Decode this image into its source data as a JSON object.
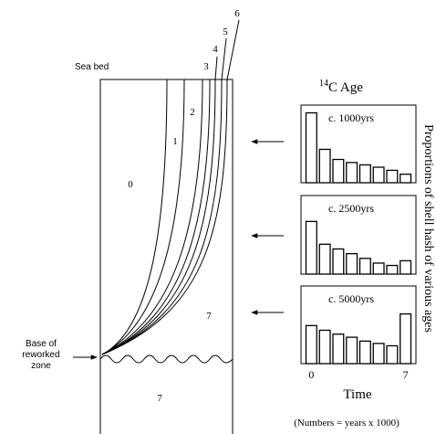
{
  "diagram": {
    "sea_bed": "Sea bed",
    "base_label": [
      "Base of",
      "reworked",
      "zone"
    ],
    "zone_labels": [
      "0",
      "1",
      "2",
      "3",
      "4",
      "5",
      "6"
    ],
    "lower_labels": [
      "7",
      "7"
    ],
    "age_title_sup": "14",
    "age_title": "C Age",
    "x_label": "Time",
    "y_label": "Proportions of shell hash of various ages",
    "note": "(Numbers = years x 1000)"
  },
  "chart_data": [
    {
      "type": "bar",
      "title": "c. 1000yrs",
      "categories": [
        null,
        null,
        null,
        null,
        null,
        null,
        null,
        null
      ],
      "values": [
        9,
        4.3,
        3,
        2.6,
        2.3,
        2,
        1.6,
        1.1
      ],
      "ylim": [
        0,
        10
      ],
      "color": "#ffffff"
    },
    {
      "type": "bar",
      "title": "c. 2500yrs",
      "categories": [
        null,
        null,
        null,
        null,
        null,
        null,
        null,
        null
      ],
      "values": [
        6.7,
        3.8,
        3.2,
        2.6,
        2,
        1.4,
        1.1,
        1.7
      ],
      "ylim": [
        0,
        10
      ],
      "color": "#ffffff"
    },
    {
      "type": "bar",
      "title": "c. 5000yrs",
      "categories": [
        "0",
        null,
        null,
        null,
        null,
        null,
        null,
        "7"
      ],
      "values": [
        4.9,
        4.3,
        3.8,
        3.4,
        2.9,
        2.6,
        2.3,
        6.4
      ],
      "ylim": [
        0,
        10
      ],
      "color": "#ffffff"
    }
  ]
}
